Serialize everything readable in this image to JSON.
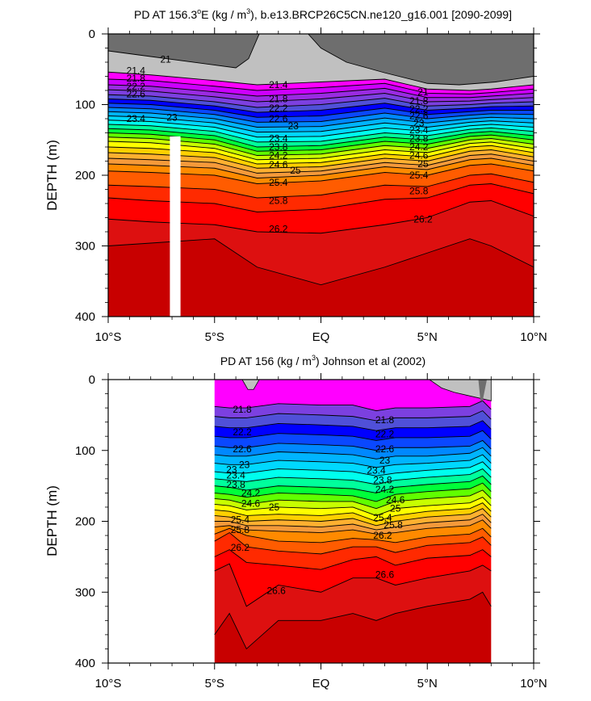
{
  "colors": {
    "bands": [
      "#ffffff",
      "#c0c0c0",
      "#ff00ff",
      "#cc00ff",
      "#9a2be2",
      "#7c40e0",
      "#5050d8",
      "#0000ff",
      "#0a48ff",
      "#0088ff",
      "#00b4ff",
      "#00d8ff",
      "#00ffee",
      "#00ff9c",
      "#00ff3a",
      "#60ff00",
      "#c8ff00",
      "#ffff00",
      "#ffd000",
      "#ffb030",
      "#f59a3a",
      "#ff8a00",
      "#ff5c00",
      "#ff2a00",
      "#ff0000",
      "#dd1010",
      "#c80000"
    ],
    "topo_upper": "#6e6e6e",
    "topo_lower": "#c0c0c0",
    "white_bar": "#ffffff"
  },
  "chart_data": [
    {
      "type": "contour",
      "title_prefix": "PD AT 156.3",
      "title_super_deg": "o",
      "title_mid": "E (kg / m",
      "title_super_unit": "3",
      "title_suffix": "), b.e13.BRCP26C5CN.ne120_g16.001 [2090-2099]",
      "ylabel": "DEPTH (m)",
      "xticks": [
        {
          "value": -10,
          "label": "10°S"
        },
        {
          "value": -5,
          "label": "5°S"
        },
        {
          "value": 0,
          "label": "EQ"
        },
        {
          "value": 5,
          "label": "5°N"
        },
        {
          "value": 10,
          "label": "10°N"
        }
      ],
      "yticks": [
        0,
        100,
        200,
        300,
        400
      ],
      "xlim": [
        -10,
        10
      ],
      "ylim": [
        0,
        400
      ],
      "levels": [
        21,
        21.2,
        21.4,
        21.6,
        21.8,
        22,
        22.2,
        22.4,
        22.6,
        22.8,
        23,
        23.2,
        23.4,
        23.6,
        23.8,
        24,
        24.2,
        24.4,
        24.6,
        24.8,
        25,
        25.4,
        25.8,
        26.2,
        26.6
      ],
      "depth_profiles": [
        {
          "lat": -10,
          "depths": [
            54,
            64,
            72,
            79,
            86,
            92,
            98,
            104,
            110,
            116,
            122,
            128,
            134,
            140,
            146,
            152,
            160,
            168,
            176,
            184,
            194,
            214,
            232,
            262,
            300
          ]
        },
        {
          "lat": -8,
          "depths": [
            58,
            66,
            74,
            81,
            88,
            94,
            100,
            106,
            112,
            118,
            124,
            130,
            136,
            142,
            148,
            154,
            162,
            170,
            178,
            186,
            196,
            216,
            236,
            266,
            296
          ]
        },
        {
          "lat": -5,
          "depths": [
            66,
            74,
            82,
            89,
            96,
            102,
            108,
            114,
            120,
            126,
            132,
            138,
            144,
            150,
            156,
            162,
            168,
            175,
            182,
            190,
            200,
            220,
            240,
            270,
            290
          ]
        },
        {
          "lat": -3,
          "depths": [
            72,
            80,
            88,
            96,
            104,
            111,
            118,
            125,
            132,
            139,
            146,
            153,
            160,
            166,
            172,
            178,
            184,
            190,
            197,
            204,
            212,
            232,
            252,
            280,
            330
          ]
        },
        {
          "lat": 0,
          "depths": [
            68,
            76,
            84,
            92,
            100,
            108,
            116,
            124,
            131,
            138,
            145,
            152,
            158,
            164,
            170,
            176,
            182,
            188,
            194,
            200,
            208,
            228,
            248,
            282,
            355
          ]
        },
        {
          "lat": 3,
          "depths": [
            64,
            70,
            77,
            84,
            91,
            98,
            105,
            112,
            119,
            126,
            133,
            140,
            146,
            152,
            158,
            164,
            170,
            176,
            182,
            188,
            196,
            214,
            234,
            270,
            330
          ]
        },
        {
          "lat": 5,
          "depths": [
            78,
            84,
            90,
            96,
            102,
            108,
            114,
            120,
            126,
            132,
            138,
            144,
            150,
            156,
            162,
            168,
            174,
            180,
            186,
            192,
            200,
            216,
            232,
            260,
            310
          ]
        },
        {
          "lat": 7,
          "depths": [
            80,
            85,
            90,
            95,
            100,
            105,
            110,
            115,
            120,
            125,
            130,
            135,
            140,
            145,
            150,
            155,
            160,
            166,
            172,
            178,
            186,
            200,
            214,
            238,
            290
          ]
        },
        {
          "lat": 8,
          "depths": [
            78,
            83,
            88,
            93,
            98,
            103,
            108,
            113,
            118,
            123,
            128,
            133,
            138,
            143,
            148,
            153,
            158,
            164,
            170,
            176,
            184,
            198,
            212,
            236,
            300
          ]
        },
        {
          "lat": 10,
          "depths": [
            72,
            78,
            84,
            90,
            96,
            102,
            108,
            114,
            120,
            126,
            132,
            138,
            144,
            150,
            156,
            162,
            168,
            174,
            180,
            186,
            194,
            210,
            226,
            258,
            330
          ]
        }
      ],
      "labels": [
        {
          "text": "21",
          "lat": -7.3,
          "depth": 36
        },
        {
          "text": "21.4",
          "lat": -8.7,
          "depth": 52
        },
        {
          "text": "21.8",
          "lat": -8.7,
          "depth": 63
        },
        {
          "text": "22.2",
          "lat": -8.7,
          "depth": 74
        },
        {
          "text": "22.6",
          "lat": -8.7,
          "depth": 85
        },
        {
          "text": "23",
          "lat": -7.0,
          "depth": 118
        },
        {
          "text": "23.4",
          "lat": -8.7,
          "depth": 120
        },
        {
          "text": "21.4",
          "lat": -2.0,
          "depth": 72
        },
        {
          "text": "21.8",
          "lat": -2.0,
          "depth": 92
        },
        {
          "text": "22.2",
          "lat": -2.0,
          "depth": 105
        },
        {
          "text": "22.6",
          "lat": -2.0,
          "depth": 120
        },
        {
          "text": "23",
          "lat": -1.3,
          "depth": 130
        },
        {
          "text": "23.4",
          "lat": -2.0,
          "depth": 148
        },
        {
          "text": "23.8",
          "lat": -2.0,
          "depth": 160
        },
        {
          "text": "24.2",
          "lat": -2.0,
          "depth": 172
        },
        {
          "text": "24.6",
          "lat": -2.0,
          "depth": 185
        },
        {
          "text": "25",
          "lat": -1.2,
          "depth": 193
        },
        {
          "text": "25.4",
          "lat": -2.0,
          "depth": 210
        },
        {
          "text": "25.8",
          "lat": -2.0,
          "depth": 236
        },
        {
          "text": "26.2",
          "lat": -2.0,
          "depth": 276
        },
        {
          "text": "21",
          "lat": 4.8,
          "depth": 82
        },
        {
          "text": "21.8",
          "lat": 4.6,
          "depth": 95
        },
        {
          "text": "22.2",
          "lat": 4.6,
          "depth": 106
        },
        {
          "text": "22.6",
          "lat": 4.6,
          "depth": 116
        },
        {
          "text": "23",
          "lat": 4.6,
          "depth": 126
        },
        {
          "text": "23.4",
          "lat": 4.6,
          "depth": 136
        },
        {
          "text": "23.8",
          "lat": 4.6,
          "depth": 148
        },
        {
          "text": "24.2",
          "lat": 4.6,
          "depth": 160
        },
        {
          "text": "24.6",
          "lat": 4.6,
          "depth": 172
        },
        {
          "text": "25",
          "lat": 4.8,
          "depth": 184
        },
        {
          "text": "25.4",
          "lat": 4.6,
          "depth": 200
        },
        {
          "text": "25.8",
          "lat": 4.6,
          "depth": 222
        },
        {
          "text": "26.2",
          "lat": 4.8,
          "depth": 262
        }
      ],
      "white_bar": {
        "lat_from": -7.1,
        "lat_to": -6.6,
        "depth_from": 145,
        "depth_to": 400
      }
    },
    {
      "type": "contour",
      "title_prefix": "PD AT 156 (kg / m",
      "title_super_unit": "3",
      "title_suffix": ") Johnson et al (2002)",
      "ylabel": "DEPTH (m)",
      "xticks": [
        {
          "value": -10,
          "label": "10°S"
        },
        {
          "value": -5,
          "label": "5°S"
        },
        {
          "value": 0,
          "label": "EQ"
        },
        {
          "value": 5,
          "label": "5°N"
        },
        {
          "value": 10,
          "label": "10°N"
        }
      ],
      "yticks": [
        0,
        100,
        200,
        300,
        400
      ],
      "xlim": [
        -10,
        10
      ],
      "ylim": [
        0,
        400
      ],
      "data_extent": [
        -5,
        8
      ],
      "levels": [
        21.8,
        22,
        22.2,
        22.4,
        22.6,
        22.8,
        23,
        23.2,
        23.4,
        23.6,
        23.8,
        24,
        24.2,
        24.4,
        24.6,
        24.8,
        25,
        25.4,
        25.8,
        26.2,
        26.6,
        27
      ],
      "depth_profiles": [
        {
          "lat": -5,
          "depths": [
            38,
            52,
            66,
            80,
            94,
            106,
            118,
            130,
            140,
            150,
            160,
            168,
            176,
            184,
            192,
            200,
            208,
            218,
            228,
            250,
            270,
            360
          ]
        },
        {
          "lat": -4.3,
          "depths": [
            40,
            54,
            68,
            82,
            96,
            108,
            120,
            132,
            142,
            152,
            162,
            170,
            178,
            186,
            194,
            200,
            206,
            210,
            216,
            240,
            260,
            330
          ]
        },
        {
          "lat": -3.5,
          "depths": [
            40,
            54,
            68,
            82,
            96,
            108,
            120,
            132,
            144,
            156,
            166,
            176,
            184,
            192,
            200,
            206,
            212,
            220,
            236,
            258,
            320,
            380
          ]
        },
        {
          "lat": -2,
          "depths": [
            34,
            48,
            62,
            76,
            90,
            102,
            114,
            126,
            138,
            150,
            160,
            170,
            180,
            190,
            198,
            206,
            214,
            228,
            242,
            262,
            290,
            340
          ]
        },
        {
          "lat": 0,
          "depths": [
            36,
            50,
            64,
            78,
            92,
            104,
            116,
            128,
            140,
            152,
            162,
            172,
            182,
            192,
            200,
            208,
            216,
            230,
            246,
            268,
            300,
            340
          ]
        },
        {
          "lat": 1.5,
          "depths": [
            36,
            52,
            66,
            80,
            94,
            106,
            118,
            130,
            142,
            154,
            164,
            172,
            180,
            188,
            196,
            204,
            212,
            224,
            236,
            254,
            280,
            330
          ]
        },
        {
          "lat": 2.6,
          "depths": [
            44,
            58,
            72,
            86,
            100,
            112,
            124,
            136,
            148,
            160,
            172,
            182,
            192,
            200,
            206,
            212,
            218,
            226,
            236,
            250,
            280,
            340
          ]
        },
        {
          "lat": 3.5,
          "depths": [
            40,
            54,
            68,
            82,
            96,
            108,
            120,
            132,
            142,
            152,
            162,
            172,
            182,
            192,
            200,
            208,
            216,
            230,
            244,
            262,
            290,
            330
          ]
        },
        {
          "lat": 5,
          "depths": [
            40,
            54,
            68,
            82,
            96,
            108,
            118,
            128,
            138,
            148,
            158,
            168,
            178,
            186,
            194,
            202,
            210,
            222,
            234,
            252,
            280,
            320
          ]
        },
        {
          "lat": 7,
          "depths": [
            38,
            52,
            66,
            80,
            94,
            104,
            114,
            124,
            134,
            144,
            154,
            164,
            174,
            182,
            190,
            198,
            206,
            218,
            230,
            248,
            270,
            310
          ]
        },
        {
          "lat": 7.6,
          "depths": [
            30,
            44,
            58,
            72,
            86,
            96,
            106,
            116,
            126,
            136,
            146,
            156,
            166,
            174,
            182,
            190,
            198,
            210,
            222,
            240,
            262,
            300
          ]
        },
        {
          "lat": 8,
          "depths": [
            42,
            56,
            70,
            84,
            98,
            108,
            118,
            128,
            138,
            148,
            158,
            168,
            178,
            186,
            194,
            202,
            210,
            222,
            234,
            250,
            270,
            320
          ]
        }
      ],
      "labels": [
        {
          "text": "21.8",
          "lat": -3.7,
          "depth": 42
        },
        {
          "text": "22.2",
          "lat": -3.7,
          "depth": 74
        },
        {
          "text": "22.6",
          "lat": -3.7,
          "depth": 98
        },
        {
          "text": "23",
          "lat": -3.6,
          "depth": 120
        },
        {
          "text": "23",
          "lat": -4.2,
          "depth": 127
        },
        {
          "text": "23.4",
          "lat": -4.0,
          "depth": 135
        },
        {
          "text": "23.8",
          "lat": -4.0,
          "depth": 148
        },
        {
          "text": "24.2",
          "lat": -3.3,
          "depth": 160
        },
        {
          "text": "24.6",
          "lat": -3.3,
          "depth": 175
        },
        {
          "text": "25",
          "lat": -2.2,
          "depth": 180
        },
        {
          "text": "25.4",
          "lat": -3.8,
          "depth": 198
        },
        {
          "text": "25.8",
          "lat": -3.8,
          "depth": 212
        },
        {
          "text": "26.2",
          "lat": -3.8,
          "depth": 237
        },
        {
          "text": "26.6",
          "lat": -2.1,
          "depth": 298
        },
        {
          "text": "21.8",
          "lat": 3.0,
          "depth": 57
        },
        {
          "text": "22.2",
          "lat": 3.0,
          "depth": 77
        },
        {
          "text": "22.6",
          "lat": 3.0,
          "depth": 98
        },
        {
          "text": "23",
          "lat": 3.0,
          "depth": 114
        },
        {
          "text": "23.4",
          "lat": 2.6,
          "depth": 128
        },
        {
          "text": "23.8",
          "lat": 2.9,
          "depth": 142
        },
        {
          "text": "24.2",
          "lat": 3.0,
          "depth": 155
        },
        {
          "text": "24.6",
          "lat": 3.5,
          "depth": 170
        },
        {
          "text": "25",
          "lat": 3.5,
          "depth": 182
        },
        {
          "text": "25.4",
          "lat": 2.9,
          "depth": 195
        },
        {
          "text": "25.8",
          "lat": 3.4,
          "depth": 205
        },
        {
          "text": "26.2",
          "lat": 2.9,
          "depth": 220
        },
        {
          "text": "26.6",
          "lat": 3.0,
          "depth": 275
        }
      ],
      "topo_blocks": [
        {
          "lat_from": 5.1,
          "lat_to": 8.0,
          "depths": [
            0,
            12,
            18,
            22,
            26,
            30
          ]
        },
        {
          "lat_from": -3.7,
          "lat_to": -2.9,
          "depths": [
            0,
            14,
            14,
            0
          ]
        }
      ]
    }
  ]
}
